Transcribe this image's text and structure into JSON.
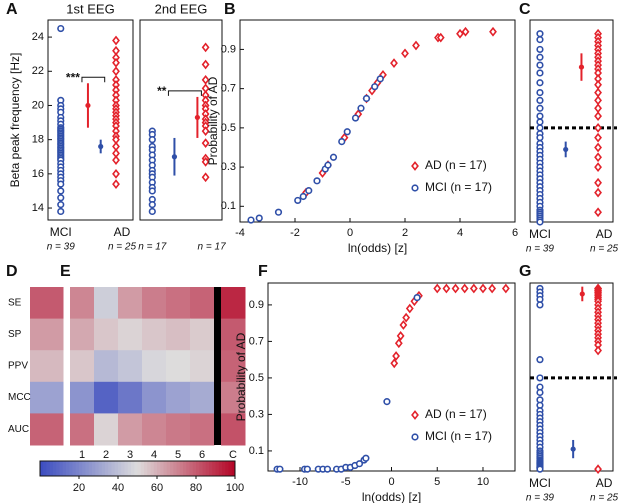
{
  "chart_data": [
    {
      "type": "strip",
      "panel": "A",
      "title": "1st EEG",
      "ylabel": "Beta peak frequency [Hz]",
      "ylim": [
        13.3,
        25
      ],
      "yticks": [
        14,
        16,
        18,
        20,
        22,
        24
      ],
      "annotation": "***",
      "groups": [
        {
          "label": "MCI",
          "n_label": "n = 39",
          "color": "#2f4fa8",
          "marker": "circle",
          "mean": 17.6,
          "error": 0.4,
          "values": [
            24.5,
            20.3,
            20.0,
            19.8,
            19.6,
            19.3,
            19.1,
            18.9,
            18.7,
            18.6,
            18.5,
            18.4,
            18.3,
            18.2,
            18.1,
            18.0,
            17.9,
            17.8,
            17.7,
            17.6,
            17.5,
            17.4,
            17.3,
            17.2,
            17.1,
            17.0,
            16.9,
            16.8,
            16.6,
            16.4,
            16.2,
            16.0,
            15.8,
            15.6,
            15.4,
            15.0,
            14.6,
            14.2,
            13.8
          ]
        },
        {
          "label": "AD",
          "n_label": "n = 25",
          "color": "#e3222b",
          "marker": "diamond",
          "mean": 20.0,
          "error": 1.3,
          "values": [
            23.8,
            23.2,
            22.8,
            22.5,
            22.0,
            21.5,
            21.2,
            20.9,
            20.6,
            20.3,
            20.0,
            19.8,
            19.6,
            19.4,
            19.2,
            19.0,
            18.8,
            18.5,
            18.2,
            18.0,
            17.6,
            17.2,
            16.8,
            16.0,
            15.4
          ]
        }
      ]
    },
    {
      "type": "strip",
      "title": "2nd EEG",
      "ylim": [
        13.3,
        25
      ],
      "annotation": "**",
      "groups": [
        {
          "n_label": "n = 17",
          "color": "#2f4fa8",
          "marker": "circle",
          "mean": 17.0,
          "error": 1.1,
          "values": [
            18.5,
            18.3,
            18.0,
            17.6,
            17.4,
            17.1,
            16.8,
            16.5,
            16.2,
            16.0,
            15.8,
            15.5,
            15.2,
            15.0,
            14.5,
            14.2,
            13.8
          ]
        },
        {
          "n_label": "n = 17",
          "color": "#e3222b",
          "marker": "diamond",
          "mean": 19.3,
          "error": 1.2,
          "values": [
            23.4,
            22.4,
            21.5,
            21.0,
            20.6,
            20.3,
            20.0,
            19.8,
            19.5,
            19.2,
            19.0,
            18.8,
            18.5,
            17.8,
            16.9,
            16.7,
            15.8
          ]
        }
      ]
    },
    {
      "type": "scatter",
      "panel": "B",
      "xlabel": "ln(odds) [z]",
      "ylabel": "Probability of AD",
      "xlim": [
        -4,
        6
      ],
      "xticks": [
        -4,
        -2,
        0,
        2,
        4,
        6
      ],
      "ylim": [
        0.02,
        1.05
      ],
      "yticks": [
        0.1,
        0.3,
        0.5,
        0.7,
        0.9
      ],
      "legend": "lower right",
      "series": [
        {
          "name": "AD (n = 17)",
          "color": "#e3222b",
          "marker": "diamond",
          "x": [
            -1.6,
            -1.0,
            -0.8,
            -0.2,
            0.3,
            0.6,
            0.8,
            1.0,
            1.2,
            1.6,
            2.0,
            2.4,
            3.2,
            3.3,
            4.0,
            4.2,
            5.2
          ],
          "values": [
            0.17,
            0.27,
            0.31,
            0.45,
            0.57,
            0.65,
            0.69,
            0.73,
            0.77,
            0.83,
            0.88,
            0.92,
            0.96,
            0.96,
            0.98,
            0.99,
            0.99
          ]
        },
        {
          "name": "MCI (n = 17)",
          "color": "#2f4fa8",
          "marker": "circle",
          "x": [
            -3.6,
            -3.3,
            -2.6,
            -1.9,
            -1.7,
            -1.5,
            -1.2,
            -0.9,
            -0.8,
            -0.6,
            -0.3,
            -0.1,
            0.2,
            0.4,
            0.6,
            0.9,
            1.1
          ],
          "values": [
            0.03,
            0.04,
            0.07,
            0.13,
            0.15,
            0.18,
            0.23,
            0.29,
            0.31,
            0.35,
            0.43,
            0.48,
            0.55,
            0.6,
            0.65,
            0.71,
            0.75
          ]
        }
      ]
    },
    {
      "type": "strip",
      "panel": "C",
      "ylim": [
        0.02,
        1.05
      ],
      "threshold": 0.5,
      "groups": [
        {
          "label": "MCI",
          "n_label": "n = 39",
          "color": "#2f4fa8",
          "marker": "circle",
          "mean": 0.39,
          "error": 0.04,
          "values": [
            0.98,
            0.95,
            0.9,
            0.86,
            0.82,
            0.78,
            0.73,
            0.68,
            0.64,
            0.6,
            0.56,
            0.53,
            0.5,
            0.47,
            0.45,
            0.42,
            0.4,
            0.38,
            0.36,
            0.34,
            0.32,
            0.3,
            0.28,
            0.26,
            0.24,
            0.22,
            0.2,
            0.18,
            0.16,
            0.14,
            0.12,
            0.1,
            0.08,
            0.07,
            0.06,
            0.05,
            0.04,
            0.03,
            0.02
          ]
        },
        {
          "label": "AD",
          "n_label": "n = 25",
          "color": "#e3222b",
          "marker": "diamond",
          "mean": 0.81,
          "error": 0.07,
          "values": [
            0.98,
            0.96,
            0.94,
            0.92,
            0.9,
            0.88,
            0.86,
            0.84,
            0.82,
            0.8,
            0.78,
            0.75,
            0.72,
            0.68,
            0.64,
            0.6,
            0.56,
            0.5,
            0.45,
            0.4,
            0.35,
            0.3,
            0.22,
            0.17,
            0.07
          ]
        }
      ]
    },
    {
      "type": "heatmap",
      "panel": "D",
      "rows": [
        "SE",
        "SP",
        "PPV",
        "MCC",
        "AUC"
      ],
      "values": [
        [
          80
        ],
        [
          65
        ],
        [
          58
        ],
        [
          30
        ],
        [
          78
        ]
      ],
      "colormap": [
        "#3b4cc0",
        "#dddcdc",
        "#b40426"
      ],
      "clim": [
        0,
        100
      ],
      "colorbar_ticks": [
        20,
        40,
        60,
        80,
        100
      ]
    },
    {
      "type": "heatmap",
      "panel": "E",
      "columns": [
        "1",
        "2",
        "3",
        "4",
        "5",
        "6",
        "C"
      ],
      "separator_before": 6,
      "values": [
        [
          70,
          45,
          65,
          72,
          75,
          78,
          92
        ],
        [
          62,
          55,
          52,
          55,
          57,
          54,
          80
        ],
        [
          55,
          38,
          42,
          48,
          50,
          52,
          78
        ],
        [
          25,
          8,
          15,
          25,
          30,
          33,
          72
        ],
        [
          75,
          52,
          65,
          70,
          73,
          75,
          82
        ]
      ],
      "colormap": [
        "#3b4cc0",
        "#dddcdc",
        "#b40426"
      ],
      "clim": [
        0,
        100
      ]
    },
    {
      "type": "scatter",
      "panel": "F",
      "xlabel": "ln(odds) [z]",
      "ylabel": "Probability of AD",
      "xlim": [
        -13.5,
        13.5
      ],
      "xticks": [
        -10,
        -5,
        0,
        5,
        10
      ],
      "ylim": [
        -0.01,
        1.02
      ],
      "yticks": [
        0.1,
        0.3,
        0.5,
        0.7,
        0.9
      ],
      "legend": "lower right",
      "series": [
        {
          "name": "AD (n = 17)",
          "color": "#e3222b",
          "marker": "diamond",
          "x": [
            0.3,
            0.5,
            0.8,
            1.0,
            1.3,
            1.6,
            2.0,
            2.5,
            3.0,
            5.0,
            6.0,
            7.0,
            8.0,
            9.0,
            10.0,
            11.0,
            12.5
          ],
          "values": [
            0.58,
            0.62,
            0.69,
            0.73,
            0.79,
            0.83,
            0.88,
            0.92,
            0.95,
            0.99,
            0.99,
            0.99,
            0.99,
            0.99,
            0.99,
            0.99,
            0.99
          ]
        },
        {
          "name": "MCI (n = 17)",
          "color": "#2f4fa8",
          "marker": "circle",
          "x": [
            -12.5,
            -12.2,
            -9.5,
            -9.2,
            -8,
            -7.5,
            -7,
            -6,
            -5.5,
            -5,
            -4.5,
            -4,
            -3.5,
            -3.0,
            -2.8,
            -0.5,
            2.8
          ],
          "values": [
            0,
            0,
            0,
            0,
            0,
            0,
            0,
            0,
            0,
            0.01,
            0.01,
            0.02,
            0.03,
            0.05,
            0.06,
            0.37,
            0.94
          ]
        }
      ]
    },
    {
      "type": "strip",
      "panel": "G",
      "ylim": [
        -0.01,
        1.02
      ],
      "threshold": 0.5,
      "groups": [
        {
          "label": "MCI",
          "n_label": "n = 39",
          "color": "#2f4fa8",
          "marker": "circle",
          "mean": 0.11,
          "error": 0.05,
          "values": [
            0.99,
            0.97,
            0.95,
            0.93,
            0.9,
            0.6,
            0.5,
            0.45,
            0.42,
            0.38,
            0.35,
            0.32,
            0.3,
            0.28,
            0.26,
            0.24,
            0.22,
            0.2,
            0.18,
            0.16,
            0.14,
            0.12,
            0.1,
            0.09,
            0.08,
            0.07,
            0.06,
            0.05,
            0.045,
            0.04,
            0.035,
            0.03,
            0.025,
            0.02,
            0.015,
            0.01,
            0.01,
            0.005,
            0
          ]
        },
        {
          "label": "AD",
          "n_label": "n = 25",
          "color": "#e3222b",
          "marker": "diamond",
          "mean": 0.96,
          "error": 0.04,
          "values": [
            0.99,
            0.99,
            0.98,
            0.98,
            0.97,
            0.97,
            0.96,
            0.95,
            0.94,
            0.93,
            0.92,
            0.9,
            0.88,
            0.86,
            0.84,
            0.82,
            0.8,
            0.78,
            0.76,
            0.74,
            0.72,
            0.7,
            0.68,
            0.65,
            0
          ]
        }
      ]
    }
  ]
}
